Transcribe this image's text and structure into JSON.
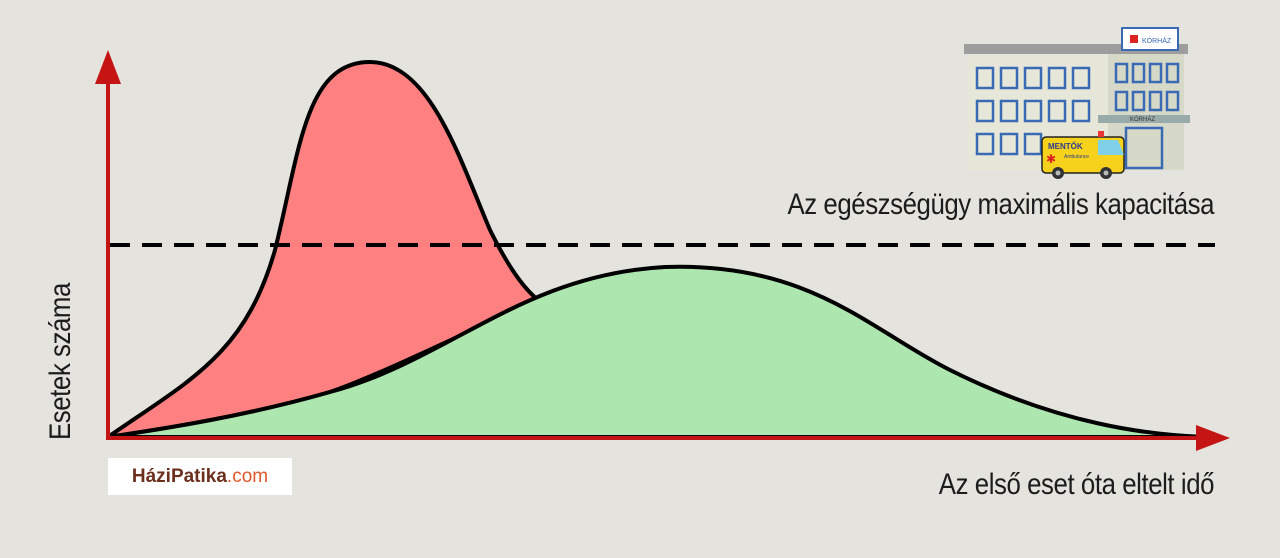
{
  "labels": {
    "capacity": "Az egészségügy maximális kapacitása",
    "x_axis": "Az első eset óta eltelt idő",
    "y_axis": "Esetek száma"
  },
  "logo": {
    "main": "HáziPatika",
    "dot": ".",
    "tld": "com"
  },
  "hospital": {
    "sign": "KÓRHÁZ",
    "entrance_sign": "KÓRHÁZ",
    "ambulance_text": "MENTŐK",
    "ambulance_subtext": "Ambulance"
  },
  "colors": {
    "background": "#e4e3dd",
    "axis": "#c41414",
    "peak_curve_fill": "#ff8080",
    "flat_curve_fill": "#aee6b0",
    "outline": "#000000",
    "capacity_line": "#000000"
  },
  "icons": [
    "hospital-icon",
    "ambulance-icon"
  ]
}
